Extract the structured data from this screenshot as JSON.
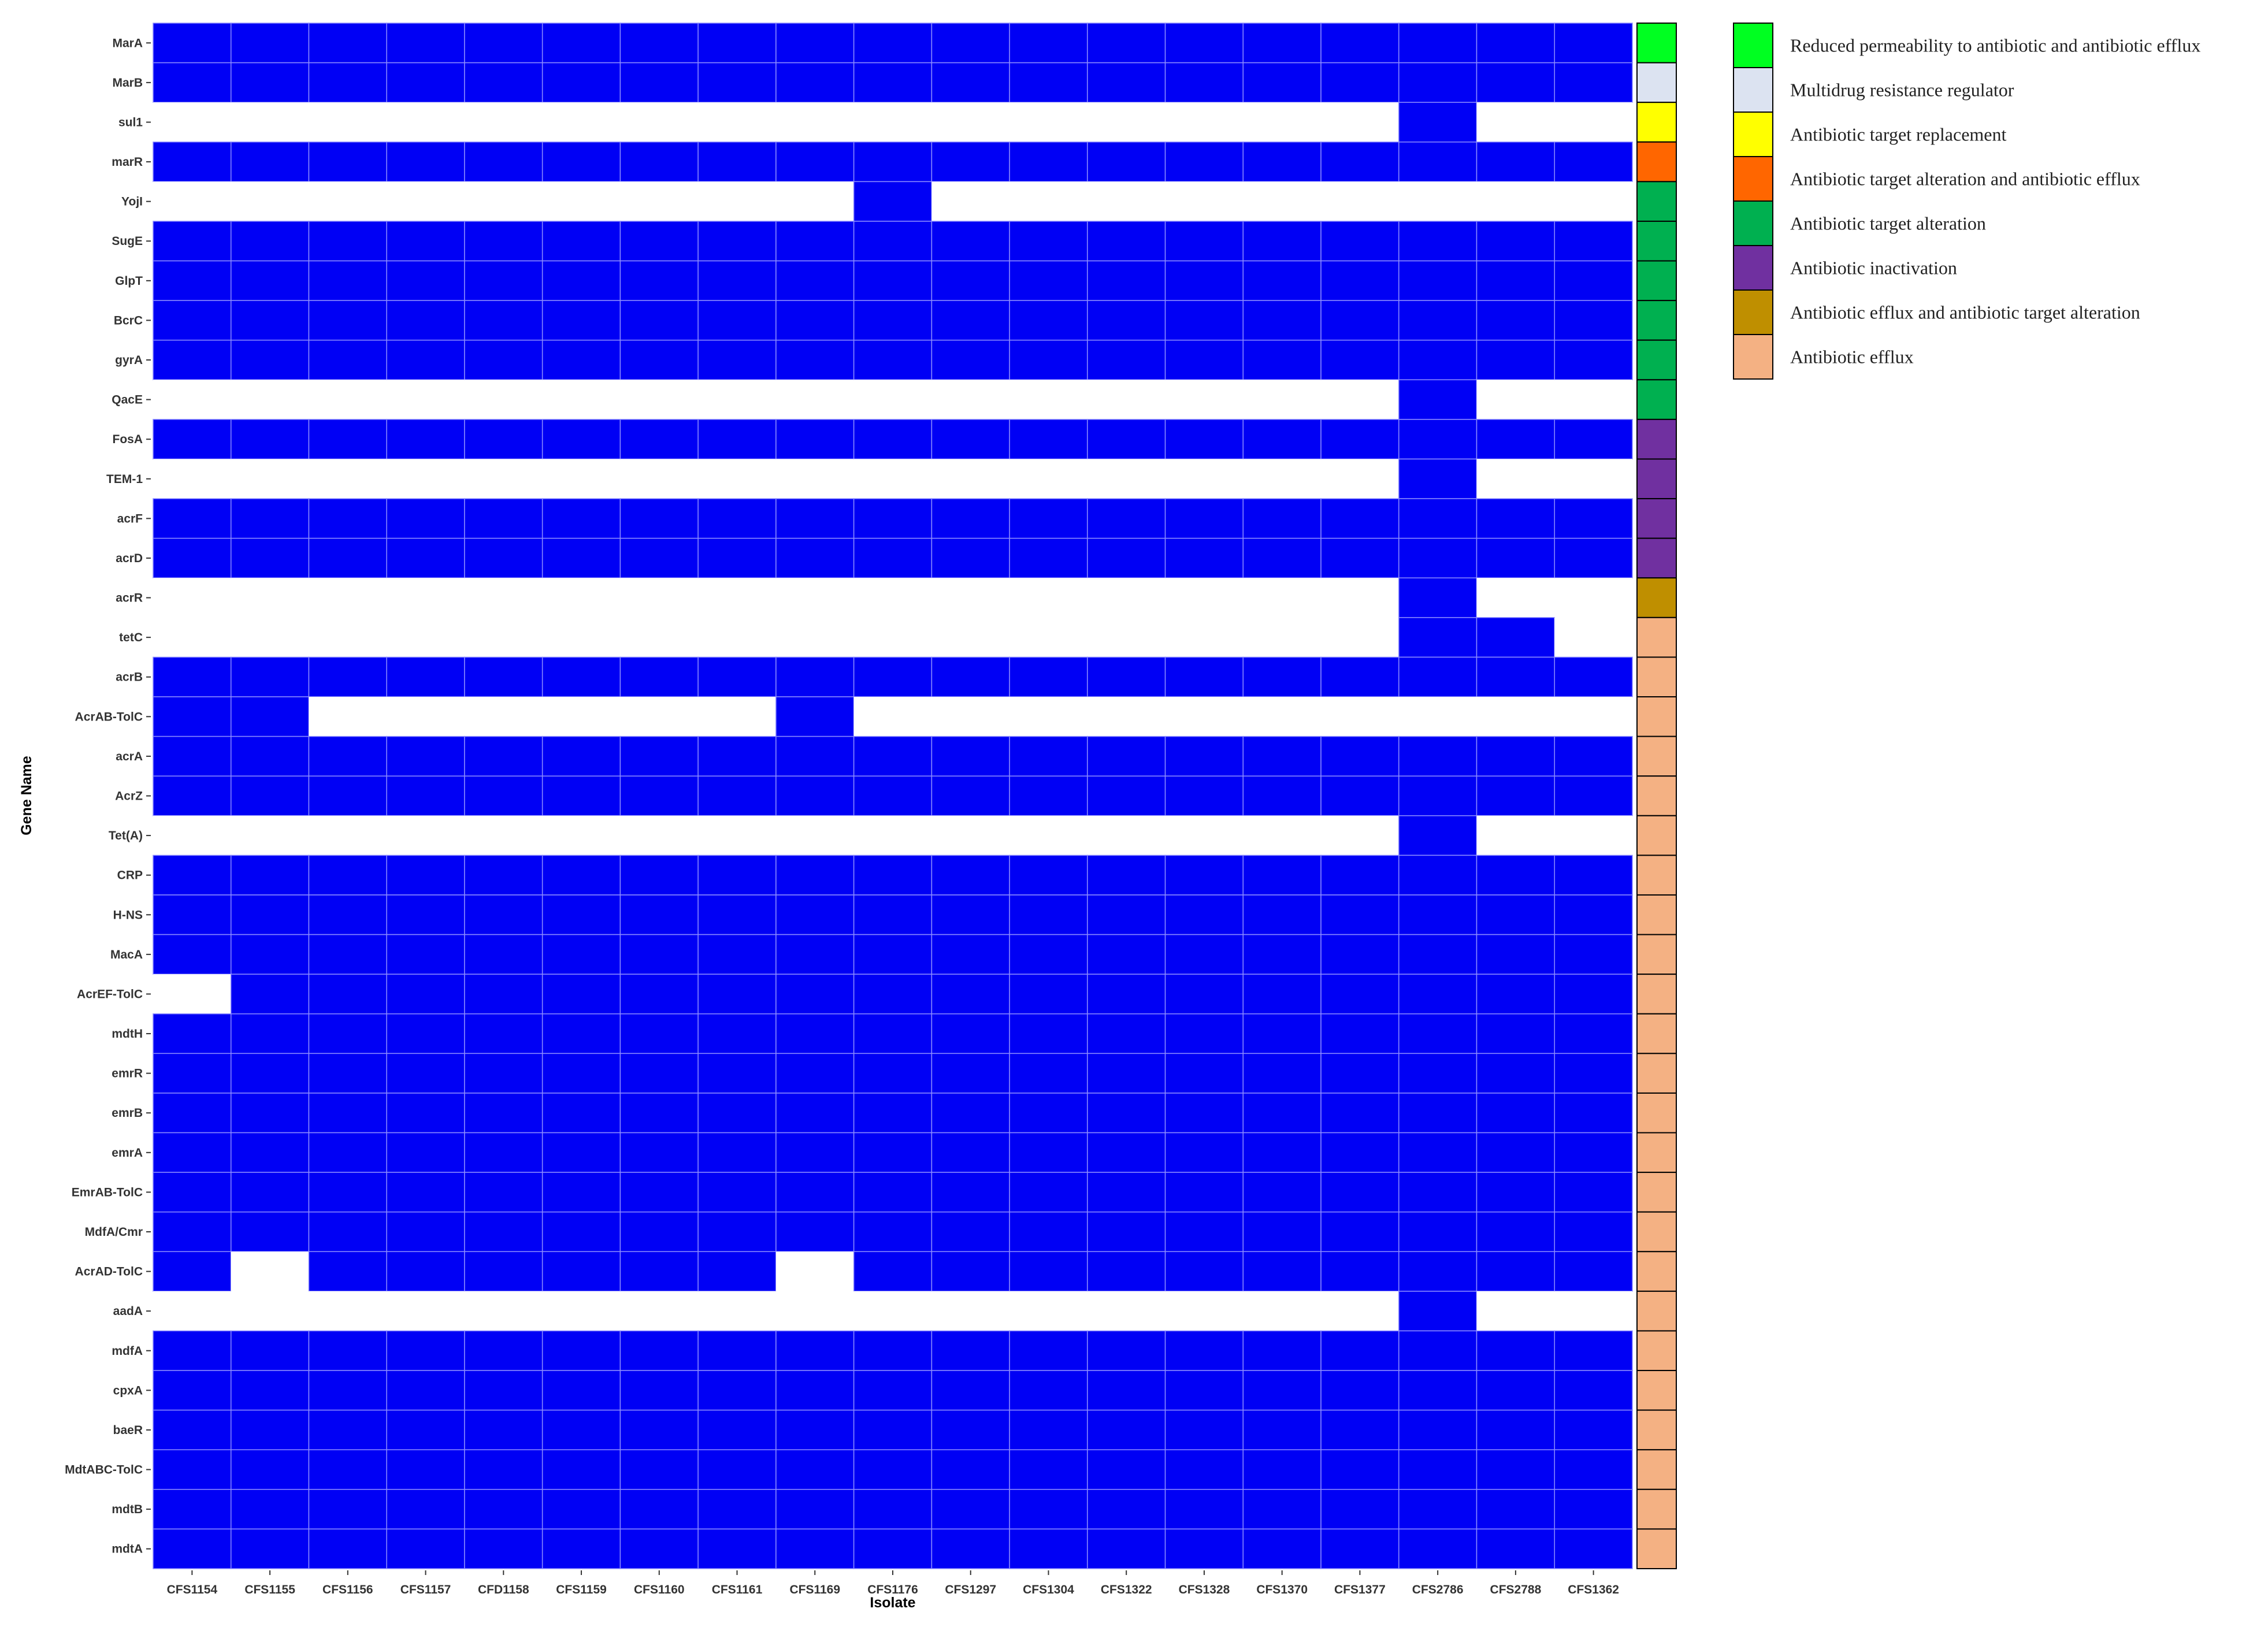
{
  "chart_data": {
    "type": "heatmap",
    "xlabel": "Isolate",
    "ylabel": "Gene Name",
    "isolates": [
      "CFS1154",
      "CFS1155",
      "CFS1156",
      "CFS1157",
      "CFD1158",
      "CFS1159",
      "CFS1160",
      "CFS1161",
      "CFS1169",
      "CFS1176",
      "CFS1297",
      "CFS1304",
      "CFS1322",
      "CFS1328",
      "CFS1370",
      "CFS1377",
      "CFS2786",
      "CFS2788",
      "CFS1362"
    ],
    "present_color": "#0000f5",
    "absent_color": "#ffffff",
    "genes": [
      {
        "name": "MarA",
        "class": 0,
        "present": [
          1,
          1,
          1,
          1,
          1,
          1,
          1,
          1,
          1,
          1,
          1,
          1,
          1,
          1,
          1,
          1,
          1,
          1,
          1
        ]
      },
      {
        "name": "MarB",
        "class": 1,
        "present": [
          1,
          1,
          1,
          1,
          1,
          1,
          1,
          1,
          1,
          1,
          1,
          1,
          1,
          1,
          1,
          1,
          1,
          1,
          1
        ]
      },
      {
        "name": "sul1",
        "class": 2,
        "present": [
          0,
          0,
          0,
          0,
          0,
          0,
          0,
          0,
          0,
          0,
          0,
          0,
          0,
          0,
          0,
          0,
          1,
          0,
          0
        ]
      },
      {
        "name": "marR",
        "class": 3,
        "present": [
          1,
          1,
          1,
          1,
          1,
          1,
          1,
          1,
          1,
          1,
          1,
          1,
          1,
          1,
          1,
          1,
          1,
          1,
          1
        ]
      },
      {
        "name": "YojI",
        "class": 4,
        "present": [
          0,
          0,
          0,
          0,
          0,
          0,
          0,
          0,
          0,
          1,
          0,
          0,
          0,
          0,
          0,
          0,
          0,
          0,
          0
        ]
      },
      {
        "name": "SugE",
        "class": 4,
        "present": [
          1,
          1,
          1,
          1,
          1,
          1,
          1,
          1,
          1,
          1,
          1,
          1,
          1,
          1,
          1,
          1,
          1,
          1,
          1
        ]
      },
      {
        "name": "GlpT",
        "class": 4,
        "present": [
          1,
          1,
          1,
          1,
          1,
          1,
          1,
          1,
          1,
          1,
          1,
          1,
          1,
          1,
          1,
          1,
          1,
          1,
          1
        ]
      },
      {
        "name": "BcrC",
        "class": 4,
        "present": [
          1,
          1,
          1,
          1,
          1,
          1,
          1,
          1,
          1,
          1,
          1,
          1,
          1,
          1,
          1,
          1,
          1,
          1,
          1
        ]
      },
      {
        "name": "gyrA",
        "class": 4,
        "present": [
          1,
          1,
          1,
          1,
          1,
          1,
          1,
          1,
          1,
          1,
          1,
          1,
          1,
          1,
          1,
          1,
          1,
          1,
          1
        ]
      },
      {
        "name": "QacE",
        "class": 4,
        "present": [
          0,
          0,
          0,
          0,
          0,
          0,
          0,
          0,
          0,
          0,
          0,
          0,
          0,
          0,
          0,
          0,
          1,
          0,
          0
        ]
      },
      {
        "name": "FosA",
        "class": 5,
        "present": [
          1,
          1,
          1,
          1,
          1,
          1,
          1,
          1,
          1,
          1,
          1,
          1,
          1,
          1,
          1,
          1,
          1,
          1,
          1
        ]
      },
      {
        "name": "TEM-1",
        "class": 5,
        "present": [
          0,
          0,
          0,
          0,
          0,
          0,
          0,
          0,
          0,
          0,
          0,
          0,
          0,
          0,
          0,
          0,
          1,
          0,
          0
        ]
      },
      {
        "name": "acrF",
        "class": 5,
        "present": [
          1,
          1,
          1,
          1,
          1,
          1,
          1,
          1,
          1,
          1,
          1,
          1,
          1,
          1,
          1,
          1,
          1,
          1,
          1
        ]
      },
      {
        "name": "acrD",
        "class": 5,
        "present": [
          1,
          1,
          1,
          1,
          1,
          1,
          1,
          1,
          1,
          1,
          1,
          1,
          1,
          1,
          1,
          1,
          1,
          1,
          1
        ]
      },
      {
        "name": "acrR",
        "class": 6,
        "present": [
          0,
          0,
          0,
          0,
          0,
          0,
          0,
          0,
          0,
          0,
          0,
          0,
          0,
          0,
          0,
          0,
          1,
          0,
          0
        ]
      },
      {
        "name": "tetC",
        "class": 7,
        "present": [
          0,
          0,
          0,
          0,
          0,
          0,
          0,
          0,
          0,
          0,
          0,
          0,
          0,
          0,
          0,
          0,
          1,
          1,
          0
        ]
      },
      {
        "name": "acrB",
        "class": 7,
        "present": [
          1,
          1,
          1,
          1,
          1,
          1,
          1,
          1,
          1,
          1,
          1,
          1,
          1,
          1,
          1,
          1,
          1,
          1,
          1
        ]
      },
      {
        "name": "AcrAB-TolC",
        "class": 7,
        "present": [
          1,
          1,
          0,
          0,
          0,
          0,
          0,
          0,
          1,
          0,
          0,
          0,
          0,
          0,
          0,
          0,
          0,
          0,
          0
        ]
      },
      {
        "name": "acrA",
        "class": 7,
        "present": [
          1,
          1,
          1,
          1,
          1,
          1,
          1,
          1,
          1,
          1,
          1,
          1,
          1,
          1,
          1,
          1,
          1,
          1,
          1
        ]
      },
      {
        "name": "AcrZ",
        "class": 7,
        "present": [
          1,
          1,
          1,
          1,
          1,
          1,
          1,
          1,
          1,
          1,
          1,
          1,
          1,
          1,
          1,
          1,
          1,
          1,
          1
        ]
      },
      {
        "name": "Tet(A)",
        "class": 7,
        "present": [
          0,
          0,
          0,
          0,
          0,
          0,
          0,
          0,
          0,
          0,
          0,
          0,
          0,
          0,
          0,
          0,
          1,
          0,
          0
        ]
      },
      {
        "name": "CRP",
        "class": 7,
        "present": [
          1,
          1,
          1,
          1,
          1,
          1,
          1,
          1,
          1,
          1,
          1,
          1,
          1,
          1,
          1,
          1,
          1,
          1,
          1
        ]
      },
      {
        "name": "H-NS",
        "class": 7,
        "present": [
          1,
          1,
          1,
          1,
          1,
          1,
          1,
          1,
          1,
          1,
          1,
          1,
          1,
          1,
          1,
          1,
          1,
          1,
          1
        ]
      },
      {
        "name": "MacA",
        "class": 7,
        "present": [
          1,
          1,
          1,
          1,
          1,
          1,
          1,
          1,
          1,
          1,
          1,
          1,
          1,
          1,
          1,
          1,
          1,
          1,
          1
        ]
      },
      {
        "name": "AcrEF-TolC",
        "class": 7,
        "present": [
          0,
          1,
          1,
          1,
          1,
          1,
          1,
          1,
          1,
          1,
          1,
          1,
          1,
          1,
          1,
          1,
          1,
          1,
          1
        ]
      },
      {
        "name": "mdtH",
        "class": 7,
        "present": [
          1,
          1,
          1,
          1,
          1,
          1,
          1,
          1,
          1,
          1,
          1,
          1,
          1,
          1,
          1,
          1,
          1,
          1,
          1
        ]
      },
      {
        "name": "emrR",
        "class": 7,
        "present": [
          1,
          1,
          1,
          1,
          1,
          1,
          1,
          1,
          1,
          1,
          1,
          1,
          1,
          1,
          1,
          1,
          1,
          1,
          1
        ]
      },
      {
        "name": "emrB",
        "class": 7,
        "present": [
          1,
          1,
          1,
          1,
          1,
          1,
          1,
          1,
          1,
          1,
          1,
          1,
          1,
          1,
          1,
          1,
          1,
          1,
          1
        ]
      },
      {
        "name": "emrA",
        "class": 7,
        "present": [
          1,
          1,
          1,
          1,
          1,
          1,
          1,
          1,
          1,
          1,
          1,
          1,
          1,
          1,
          1,
          1,
          1,
          1,
          1
        ]
      },
      {
        "name": "EmrAB-TolC",
        "class": 7,
        "present": [
          1,
          1,
          1,
          1,
          1,
          1,
          1,
          1,
          1,
          1,
          1,
          1,
          1,
          1,
          1,
          1,
          1,
          1,
          1
        ]
      },
      {
        "name": "MdfA/Cmr",
        "class": 7,
        "present": [
          1,
          1,
          1,
          1,
          1,
          1,
          1,
          1,
          1,
          1,
          1,
          1,
          1,
          1,
          1,
          1,
          1,
          1,
          1
        ]
      },
      {
        "name": "AcrAD-TolC",
        "class": 7,
        "present": [
          1,
          0,
          1,
          1,
          1,
          1,
          1,
          1,
          0,
          1,
          1,
          1,
          1,
          1,
          1,
          1,
          1,
          1,
          1
        ]
      },
      {
        "name": "aadA",
        "class": 7,
        "present": [
          0,
          0,
          0,
          0,
          0,
          0,
          0,
          0,
          0,
          0,
          0,
          0,
          0,
          0,
          0,
          0,
          1,
          0,
          0
        ]
      },
      {
        "name": "mdfA",
        "class": 7,
        "present": [
          1,
          1,
          1,
          1,
          1,
          1,
          1,
          1,
          1,
          1,
          1,
          1,
          1,
          1,
          1,
          1,
          1,
          1,
          1
        ]
      },
      {
        "name": "cpxA",
        "class": 7,
        "present": [
          1,
          1,
          1,
          1,
          1,
          1,
          1,
          1,
          1,
          1,
          1,
          1,
          1,
          1,
          1,
          1,
          1,
          1,
          1
        ]
      },
      {
        "name": "baeR",
        "class": 7,
        "present": [
          1,
          1,
          1,
          1,
          1,
          1,
          1,
          1,
          1,
          1,
          1,
          1,
          1,
          1,
          1,
          1,
          1,
          1,
          1
        ]
      },
      {
        "name": "MdtABC-TolC",
        "class": 7,
        "present": [
          1,
          1,
          1,
          1,
          1,
          1,
          1,
          1,
          1,
          1,
          1,
          1,
          1,
          1,
          1,
          1,
          1,
          1,
          1
        ]
      },
      {
        "name": "mdtB",
        "class": 7,
        "present": [
          1,
          1,
          1,
          1,
          1,
          1,
          1,
          1,
          1,
          1,
          1,
          1,
          1,
          1,
          1,
          1,
          1,
          1,
          1
        ]
      },
      {
        "name": "mdtA",
        "class": 7,
        "present": [
          1,
          1,
          1,
          1,
          1,
          1,
          1,
          1,
          1,
          1,
          1,
          1,
          1,
          1,
          1,
          1,
          1,
          1,
          1
        ]
      }
    ],
    "legend": {
      "placement": "top-right",
      "entries": [
        {
          "label": "Reduced permeability to antibiotic and antibiotic efflux",
          "color": "#00ff21"
        },
        {
          "label": "Multidrug resistance regulator",
          "color": "#dce3f1"
        },
        {
          "label": "Antibiotic target replacement",
          "color": "#ffff00"
        },
        {
          "label": "Antibiotic target alteration and antibiotic efflux",
          "color": "#ff6600"
        },
        {
          "label": "Antibiotic target alteration",
          "color": "#00b050"
        },
        {
          "label": "Antibiotic inactivation",
          "color": "#7030a0"
        },
        {
          "label": "Antibiotic efflux and antibiotic target alteration",
          "color": "#bf8f00"
        },
        {
          "label": "Antibiotic efflux",
          "color": "#f4b183"
        }
      ]
    }
  }
}
